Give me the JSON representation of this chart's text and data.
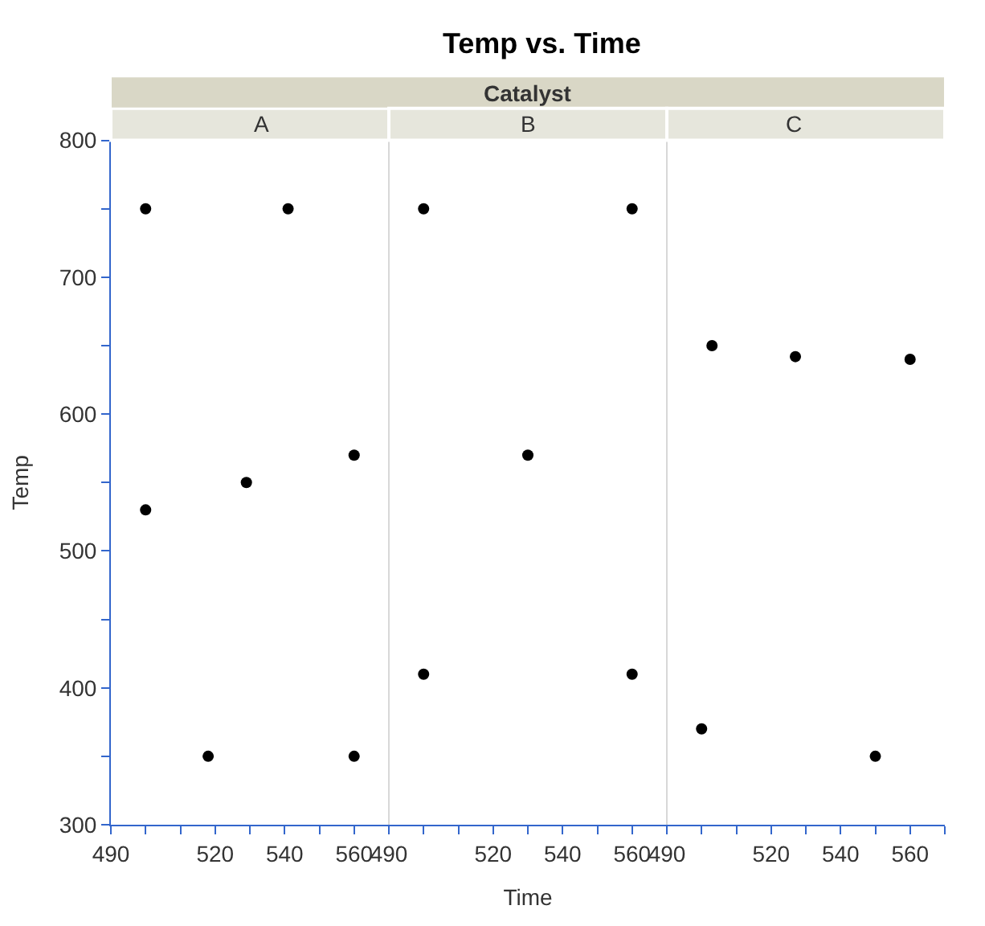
{
  "chart_data": [
    {
      "type": "scatter",
      "title": "A",
      "annotations": [
        "Temp vs. Time",
        "Catalyst"
      ],
      "ylabel": "Temp",
      "marker": "circle",
      "x": [
        500,
        541,
        500,
        529,
        560,
        518,
        560
      ],
      "series": [
        {
          "color": "#000000",
          "values": [
            750,
            750,
            530,
            550,
            570,
            350,
            350
          ]
        }
      ],
      "xlim": [
        490,
        570
      ],
      "xticks": [
        490,
        {
          "value": 500,
          "label": null
        },
        {
          "value": 510,
          "label": null
        },
        520,
        {
          "value": 530,
          "label": null
        },
        540,
        {
          "value": 550,
          "label": null
        },
        560,
        {
          "value": 570,
          "label": null
        }
      ],
      "ylim": [
        300,
        800
      ],
      "yticks": [
        300,
        {
          "value": 350,
          "label": null
        },
        400,
        {
          "value": 450,
          "label": null
        },
        500,
        {
          "value": 550,
          "label": null
        },
        600,
        {
          "value": 650,
          "label": null
        },
        700,
        {
          "value": 750,
          "label": null
        },
        800
      ]
    },
    {
      "type": "scatter",
      "title": "B",
      "xlabel": "Time",
      "marker": "circle",
      "tick_labels": "x",
      "x": [
        500,
        560,
        530,
        500,
        560
      ],
      "series": [
        {
          "color": "#000000",
          "values": [
            750,
            750,
            570,
            410,
            410
          ]
        }
      ],
      "xlim": [
        490,
        570
      ],
      "xticks": [
        490,
        {
          "value": 500,
          "label": null
        },
        {
          "value": 510,
          "label": null
        },
        520,
        {
          "value": 530,
          "label": null
        },
        540,
        {
          "value": 550,
          "label": null
        },
        560,
        {
          "value": 570,
          "label": null
        }
      ],
      "ylim": [
        300,
        800
      ]
    },
    {
      "type": "scatter",
      "title": "C",
      "marker": "circle",
      "tick_labels": "x",
      "x": [
        503,
        527,
        560,
        500,
        550
      ],
      "series": [
        {
          "color": "#000000",
          "values": [
            650,
            642,
            640,
            370,
            350
          ]
        }
      ],
      "xlim": [
        490,
        570
      ],
      "xticks": [
        490,
        {
          "value": 500,
          "label": null
        },
        {
          "value": 510,
          "label": null
        },
        520,
        {
          "value": 530,
          "label": null
        },
        540,
        {
          "value": 550,
          "label": null
        },
        560,
        {
          "value": 570,
          "label": null
        }
      ],
      "ylim": [
        300,
        800
      ]
    }
  ]
}
